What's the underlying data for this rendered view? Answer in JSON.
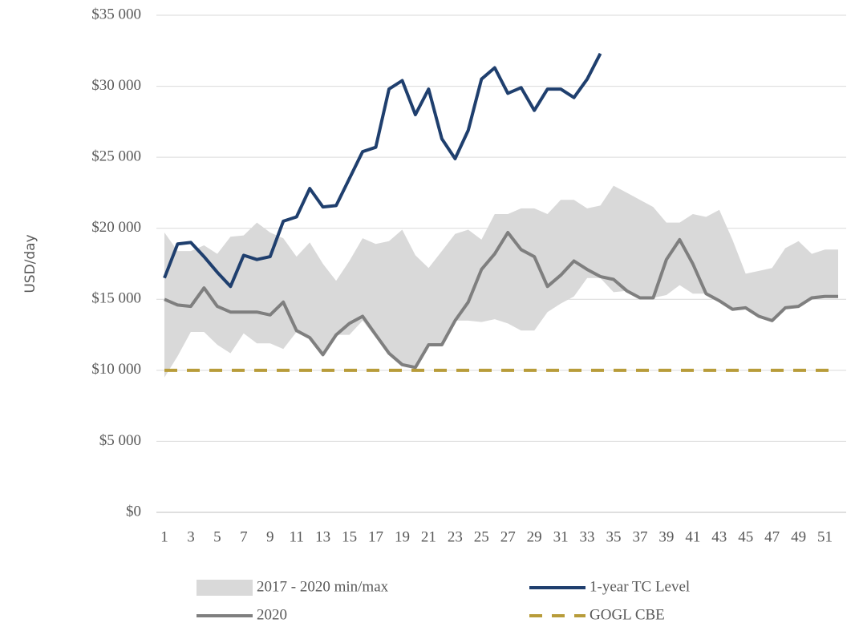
{
  "chart_data": {
    "type": "line",
    "y_label": "USD/day",
    "categories": [
      1,
      null,
      3,
      null,
      5,
      null,
      7,
      null,
      9,
      null,
      11,
      null,
      13,
      null,
      15,
      null,
      17,
      null,
      19,
      null,
      21,
      null,
      23,
      null,
      25,
      null,
      27,
      null,
      29,
      null,
      31,
      null,
      33,
      null,
      35,
      null,
      37,
      null,
      39,
      null,
      41,
      null,
      43,
      null,
      45,
      null,
      47,
      null,
      49,
      null,
      51,
      null
    ],
    "ylim": [
      0,
      35000
    ],
    "yticks": [
      {
        "value": 0,
        "label": "$0"
      },
      {
        "value": 5000,
        "label": "$5 000"
      },
      {
        "value": 10000,
        "label": "$10 000"
      },
      {
        "value": 15000,
        "label": "$15 000"
      },
      {
        "value": 20000,
        "label": "$20 000"
      },
      {
        "value": 25000,
        "label": "$25 000"
      },
      {
        "value": 30000,
        "label": "$30 000"
      },
      {
        "value": 35000,
        "label": "$35 000"
      }
    ],
    "grid": true,
    "legend": "bottom",
    "series": [
      {
        "name": "2017 - 2020 min/max",
        "kind": "band",
        "color": "#d9d9d9",
        "max": [
          19700,
          18400,
          18400,
          18800,
          18200,
          19400,
          19500,
          20400,
          19700,
          19300,
          18000,
          19000,
          17500,
          16300,
          17700,
          19300,
          18900,
          19100,
          19900,
          18100,
          17200,
          18400,
          19600,
          19900,
          19200,
          21000,
          21000,
          21400,
          21400,
          21000,
          22000,
          22000,
          21400,
          21600,
          23000,
          22500,
          22000,
          21500,
          20400,
          20400,
          21000,
          20800,
          21300,
          19200,
          16800,
          17000,
          17200,
          18600,
          19100,
          18200,
          18500,
          18500
        ],
        "min": [
          9500,
          11000,
          12700,
          12700,
          11800,
          11200,
          12600,
          11900,
          11900,
          11500,
          12700,
          12300,
          11100,
          12500,
          12500,
          13500,
          12300,
          11200,
          10400,
          10200,
          11800,
          11800,
          13500,
          13500,
          13400,
          13600,
          13300,
          12800,
          12800,
          14100,
          14700,
          15200,
          16500,
          16500,
          15500,
          15600,
          15100,
          15100,
          15300,
          16000,
          15400,
          15400,
          14900,
          14300,
          14400,
          13800,
          13500,
          14400,
          14500,
          15100,
          15200,
          15200
        ]
      },
      {
        "name": "2020",
        "color": "#7f7f7f",
        "dash": false,
        "values": [
          15000,
          14600,
          14500,
          15800,
          14500,
          14100,
          14100,
          14100,
          13900,
          14800,
          12800,
          12300,
          11100,
          12500,
          13300,
          13800,
          12500,
          11200,
          10400,
          10200,
          11800,
          11800,
          13500,
          14800,
          17100,
          18200,
          19700,
          18500,
          18000,
          15900,
          16700,
          17700,
          17100,
          16600,
          16400,
          15600,
          15100,
          15100,
          17800,
          19200,
          17500,
          15400,
          14900,
          14300,
          14400,
          13800,
          13500,
          14400,
          14500,
          15100,
          15200,
          15200
        ]
      },
      {
        "name": "1-year TC Level",
        "color": "#1f3f6e",
        "dash": false,
        "values": [
          16500,
          18900,
          19000,
          18000,
          16900,
          15900,
          18100,
          17800,
          18000,
          20500,
          20800,
          22800,
          21500,
          21600,
          23500,
          25400,
          25700,
          29800,
          30400,
          28000,
          29800,
          26300,
          24900,
          26900,
          30500,
          31300,
          29500,
          29900,
          28300,
          29800,
          29800,
          29200,
          30500,
          32300,
          null,
          null,
          null,
          null,
          null,
          null,
          null,
          null,
          null,
          null,
          null,
          null,
          null,
          null,
          null,
          null,
          null,
          null
        ]
      },
      {
        "name": "GOGL CBE",
        "color": "#b89c3a",
        "dash": true,
        "values": [
          10000,
          10000,
          10000,
          10000,
          10000,
          10000,
          10000,
          10000,
          10000,
          10000,
          10000,
          10000,
          10000,
          10000,
          10000,
          10000,
          10000,
          10000,
          10000,
          10000,
          10000,
          10000,
          10000,
          10000,
          10000,
          10000,
          10000,
          10000,
          10000,
          10000,
          10000,
          10000,
          10000,
          10000,
          10000,
          10000,
          10000,
          10000,
          10000,
          10000,
          10000,
          10000,
          10000,
          10000,
          10000,
          10000,
          10000,
          10000,
          10000,
          10000,
          10000,
          10000
        ]
      }
    ]
  }
}
